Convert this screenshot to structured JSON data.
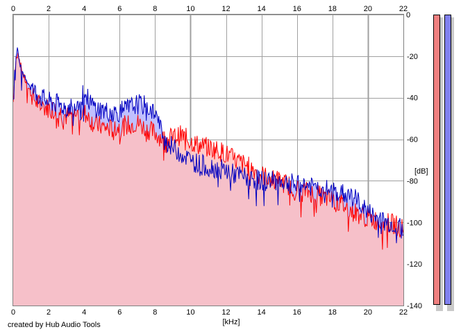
{
  "credit": "created by Hub Audio Tools",
  "colors": {
    "left_channel_line": "#ff0000",
    "left_channel_fill": "#ffc0c0",
    "right_channel_line": "#0000c0",
    "right_channel_fill": "#c0c0ff",
    "grid": "#a0a0a0",
    "left_meter": "#f08080",
    "right_meter": "#8080f0"
  },
  "meters": [
    {
      "channel": "left",
      "color": "#f08080"
    },
    {
      "channel": "right",
      "color": "#8080f0"
    }
  ],
  "chart_data": {
    "type": "area",
    "title": "",
    "xlabel": "[kHz]",
    "ylabel": "[dB]",
    "xlim": [
      0,
      22
    ],
    "ylim": [
      -140,
      0
    ],
    "x_ticks": [
      "0",
      "2",
      "4",
      "6",
      "8",
      "10",
      "12",
      "14",
      "16",
      "18",
      "20",
      "22"
    ],
    "y_ticks": [
      "0",
      "-20",
      "-40",
      "-60",
      "-80",
      "-100",
      "-120",
      "-140"
    ],
    "grid": true,
    "series": [
      {
        "channel": "left",
        "color": "#ff0000",
        "x": [
          0,
          0.1,
          0.25,
          0.4,
          0.6,
          0.8,
          1.0,
          1.3,
          1.6,
          2.0,
          2.5,
          3.0,
          3.5,
          4.0,
          4.5,
          5.0,
          5.5,
          6.0,
          6.5,
          7.0,
          7.5,
          8.0,
          8.5,
          9.0,
          9.5,
          10.0,
          10.5,
          11.0,
          11.5,
          12.0,
          12.5,
          13.0,
          13.5,
          14.0,
          14.5,
          15.0,
          15.5,
          16.0,
          16.5,
          17.0,
          17.5,
          18.0,
          18.5,
          19.0,
          19.5,
          20.0,
          20.5,
          21.0,
          21.5,
          22.0
        ],
        "values": [
          -42,
          -26,
          -16,
          -24,
          -30,
          -34,
          -38,
          -42,
          -44,
          -45,
          -46,
          -49,
          -48,
          -47,
          -52,
          -54,
          -55,
          -54,
          -53,
          -52,
          -55,
          -57,
          -60,
          -59,
          -58,
          -61,
          -63,
          -64,
          -65,
          -67,
          -70,
          -72,
          -74,
          -77,
          -79,
          -80,
          -82,
          -84,
          -85,
          -86,
          -88,
          -89,
          -91,
          -94,
          -96,
          -98,
          -99,
          -100,
          -101,
          -103
        ]
      },
      {
        "channel": "right",
        "color": "#0000c0",
        "x": [
          0,
          0.1,
          0.25,
          0.4,
          0.6,
          0.8,
          1.0,
          1.3,
          1.6,
          2.0,
          2.5,
          3.0,
          3.5,
          4.0,
          4.5,
          5.0,
          5.5,
          6.0,
          6.5,
          7.0,
          7.5,
          8.0,
          8.5,
          9.0,
          9.5,
          10.0,
          10.5,
          11.0,
          11.5,
          12.0,
          12.5,
          13.0,
          13.5,
          14.0,
          14.5,
          15.0,
          15.5,
          16.0,
          16.5,
          17.0,
          17.5,
          18.0,
          18.5,
          19.0,
          19.5,
          20.0,
          20.5,
          21.0,
          21.5,
          22.0
        ],
        "values": [
          -40,
          -24,
          -17,
          -25,
          -28,
          -32,
          -35,
          -38,
          -40,
          -42,
          -43,
          -45,
          -43,
          -38,
          -44,
          -46,
          -47,
          -47,
          -45,
          -43,
          -44,
          -47,
          -60,
          -64,
          -67,
          -70,
          -72,
          -73,
          -74,
          -75,
          -77,
          -78,
          -79,
          -80,
          -80,
          -80,
          -81,
          -82,
          -82,
          -83,
          -84,
          -85,
          -86,
          -87,
          -90,
          -95,
          -98,
          -100,
          -101,
          -104
        ]
      }
    ]
  }
}
